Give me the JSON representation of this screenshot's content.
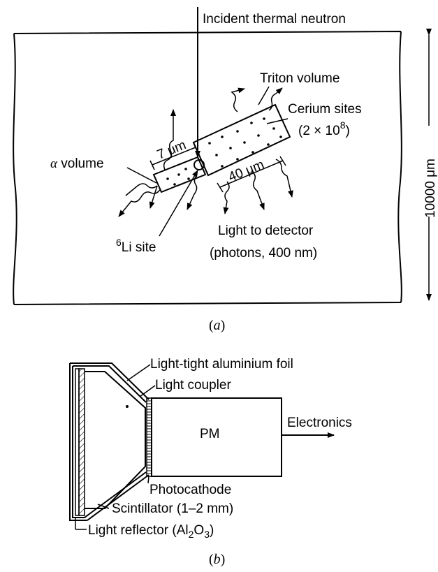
{
  "panel_a": {
    "caption_open": "(",
    "caption_letter": "a",
    "caption_close": ")",
    "incident": "Incident thermal neutron",
    "triton": "Triton volume",
    "cerium_1": "Cerium sites",
    "cerium_2_open": "(2 × 10",
    "cerium_2_exp": "8",
    "cerium_2_close": ")",
    "alpha_sym": "α",
    "alpha_rest": " volume",
    "li_sup": "6",
    "li_rest": "Li site",
    "light_1": "Light to detector",
    "light_2": "(photons, 400 nm)",
    "dim_7": "7 μm",
    "dim_40": "40 μm",
    "dim_10000": "10000 μm"
  },
  "panel_b": {
    "caption_open": "(",
    "caption_letter": "b",
    "caption_close": ")",
    "foil": "Light-tight aluminium foil",
    "coupler": "Light coupler",
    "pm": "PM",
    "electronics": "Electronics",
    "photocathode": "Photocathode",
    "scintillator": "Scintillator (1–2 mm)",
    "reflector_1": "Light reflector (Al",
    "reflector_sub2": "2",
    "reflector_2": "O",
    "reflector_sub3": "3",
    "reflector_3": ")"
  }
}
